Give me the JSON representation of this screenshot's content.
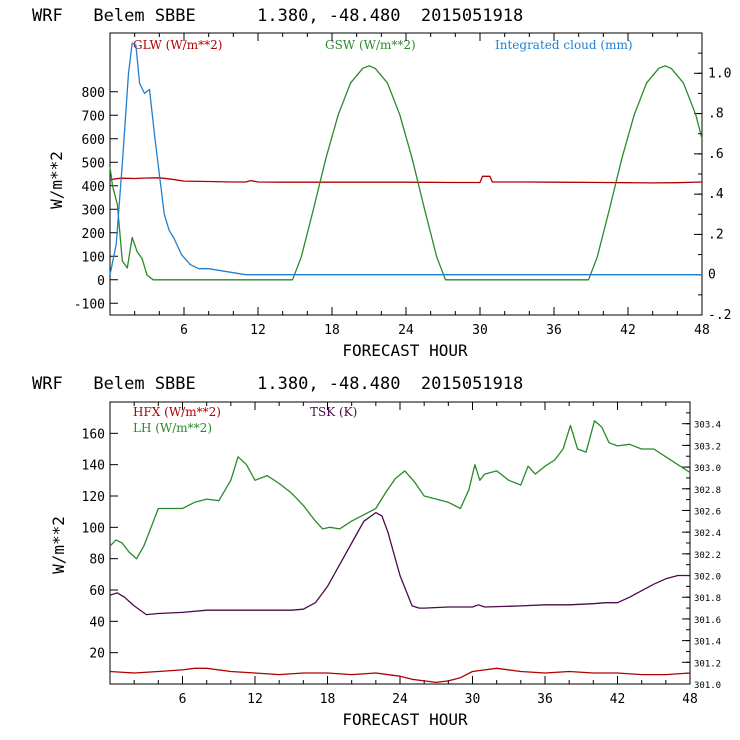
{
  "chart_data": [
    {
      "type": "line",
      "title": "WRF   Belem SBBE      1.380, -48.480  2015051918",
      "xlabel": "FORECAST HOUR",
      "ylabel": "W/m**2",
      "xlim": [
        0,
        48
      ],
      "ylim": [
        -150,
        1050
      ],
      "y2lim": [
        -0.2,
        1.2
      ],
      "x_ticks": [
        "6",
        "12",
        "18",
        "24",
        "30",
        "36",
        "42",
        "48"
      ],
      "y_ticks": [
        "-100",
        "0",
        "100",
        "200",
        "300",
        "400",
        "500",
        "600",
        "700",
        "800"
      ],
      "y2_ticks": [
        "-.2",
        "0",
        ".2",
        ".4",
        ".6",
        ".8",
        "1.0"
      ],
      "series": [
        {
          "name": "GLW (W/m**2)",
          "color": "#b00000",
          "axis": "left",
          "x": [
            0,
            0.5,
            1,
            2,
            3,
            4,
            5,
            6,
            8,
            10,
            11,
            11.4,
            12,
            14,
            18,
            20,
            24,
            28,
            30,
            30.2,
            30.8,
            31,
            34,
            36,
            40,
            42,
            44,
            46,
            48
          ],
          "values": [
            425,
            430,
            432,
            431,
            433,
            434,
            428,
            420,
            418,
            416,
            416,
            422,
            416,
            415,
            415,
            415,
            415,
            414,
            414,
            440,
            440,
            416,
            416,
            415,
            414,
            413,
            412,
            413,
            416
          ]
        },
        {
          "name": "GSW (W/m**2)",
          "color": "#2a8a2a",
          "axis": "left",
          "x": [
            0,
            0.2,
            0.6,
            1.0,
            1.4,
            1.8,
            2.2,
            2.6,
            3.0,
            3.5,
            4,
            6,
            8,
            10,
            12,
            14.8,
            15.5,
            16.5,
            17.5,
            18.5,
            19.5,
            20.5,
            21,
            21.5,
            22.5,
            23.5,
            24.5,
            25.5,
            26.5,
            27.2,
            30,
            35,
            38.8,
            39.5,
            40.5,
            41.5,
            42.5,
            43.5,
            44.5,
            45,
            45.5,
            46.5,
            47.5,
            48
          ],
          "values": [
            480,
            400,
            320,
            80,
            50,
            180,
            120,
            90,
            20,
            0,
            0,
            0,
            0,
            0,
            0,
            0,
            96,
            301,
            515,
            702,
            837,
            900,
            910,
            900,
            837,
            702,
            515,
            301,
            96,
            0,
            0,
            0,
            0,
            96,
            301,
            515,
            702,
            837,
            900,
            910,
            900,
            837,
            702,
            600
          ]
        },
        {
          "name": "Integrated cloud (mm)",
          "color": "#2080d0",
          "axis": "right",
          "x": [
            0,
            0.5,
            1.0,
            1.5,
            1.8,
            2.1,
            2.4,
            2.8,
            3.2,
            3.6,
            4.0,
            4.4,
            4.8,
            5.2,
            5.8,
            6.5,
            7.2,
            8.0,
            9.0,
            10,
            11,
            12,
            24,
            36,
            48
          ],
          "values": [
            0.0,
            0.15,
            0.55,
            1.0,
            1.15,
            1.14,
            0.95,
            0.9,
            0.92,
            0.7,
            0.5,
            0.3,
            0.22,
            0.18,
            0.1,
            0.05,
            0.03,
            0.03,
            0.02,
            0.01,
            0.0,
            0.0,
            0.0,
            0.0,
            0.0
          ]
        }
      ]
    },
    {
      "type": "line",
      "title": "WRF   Belem SBBE      1.380, -48.480  2015051918",
      "xlabel": "FORECAST HOUR",
      "ylabel": "W/m**2",
      "xlim": [
        0,
        48
      ],
      "ylim": [
        0,
        180
      ],
      "y2lim": [
        301.0,
        303.6
      ],
      "x_ticks": [
        "6",
        "12",
        "18",
        "24",
        "30",
        "36",
        "42",
        "48"
      ],
      "y_ticks": [
        "20",
        "40",
        "60",
        "80",
        "100",
        "120",
        "140",
        "160"
      ],
      "y2_ticks": [
        "301.0",
        "301.2",
        "301.4",
        "301.6",
        "301.8",
        "302.0",
        "302.2",
        "302.4",
        "302.6",
        "302.8",
        "303.0",
        "303.2",
        "303.4"
      ],
      "series": [
        {
          "name": "HFX (W/m**2)",
          "color": "#b00000",
          "axis": "left",
          "x": [
            0,
            2,
            4,
            6,
            7,
            8,
            10,
            12,
            14,
            16,
            18,
            20,
            22,
            24,
            25,
            26,
            27,
            28,
            29,
            30,
            31,
            32,
            34,
            36,
            38,
            40,
            42,
            44,
            46,
            48
          ],
          "values": [
            8,
            7,
            8,
            9,
            10,
            10,
            8,
            7,
            6,
            7,
            7,
            6,
            7,
            5,
            3,
            2,
            1,
            2,
            4,
            8,
            9,
            10,
            8,
            7,
            8,
            7,
            7,
            6,
            6,
            7
          ]
        },
        {
          "name": "LH (W/m**2)",
          "color": "#2a8a2a",
          "axis": "left",
          "x": [
            0,
            0.5,
            1.0,
            1.6,
            2.2,
            2.8,
            3.4,
            4,
            5,
            6,
            7,
            8,
            9,
            10,
            10.6,
            11.3,
            12,
            13,
            14,
            15,
            16,
            17,
            17.6,
            18.2,
            19,
            20,
            21,
            22,
            22.8,
            23.6,
            24.4,
            25.2,
            26,
            27,
            28,
            29,
            29.7,
            30.2,
            30.6,
            31,
            32,
            33,
            34,
            34.6,
            35.2,
            36,
            36.8,
            37.5,
            38.1,
            38.7,
            39.4,
            40.1,
            40.7,
            41.3,
            42,
            43,
            44,
            45,
            46,
            47,
            48
          ],
          "values": [
            88,
            92,
            90,
            84,
            80,
            88,
            100,
            112,
            112,
            112,
            116,
            118,
            117,
            130,
            145,
            140,
            130,
            133,
            128,
            122,
            114,
            104,
            99,
            100,
            99,
            104,
            108,
            112,
            122,
            131,
            136,
            129,
            120,
            118,
            116,
            112,
            124,
            140,
            130,
            134,
            136,
            130,
            127,
            139,
            134,
            139,
            143,
            150,
            165,
            150,
            148,
            168,
            164,
            154,
            152,
            153,
            150,
            150,
            145,
            140,
            135
          ]
        },
        {
          "name": "TSK (K)",
          "color": "#4b0a4b",
          "axis": "right",
          "x": [
            0,
            0.6,
            1.2,
            2,
            3,
            4,
            6,
            8,
            10,
            12,
            14,
            15,
            16,
            17,
            18,
            19,
            20,
            21,
            22,
            22.5,
            23,
            24,
            25,
            25.6,
            26,
            28,
            30,
            30.5,
            31,
            34,
            36,
            38,
            40,
            41,
            42,
            43,
            44,
            45,
            46,
            47,
            48
          ],
          "values": [
            301.82,
            301.84,
            301.8,
            301.72,
            301.64,
            301.65,
            301.66,
            301.68,
            301.68,
            301.68,
            301.68,
            301.68,
            301.69,
            301.75,
            301.9,
            302.1,
            302.3,
            302.5,
            302.58,
            302.55,
            302.4,
            302.0,
            301.72,
            301.7,
            301.7,
            301.71,
            301.71,
            301.73,
            301.71,
            301.72,
            301.73,
            301.73,
            301.74,
            301.75,
            301.75,
            301.8,
            301.86,
            301.92,
            301.97,
            302.0,
            302.0
          ]
        }
      ]
    }
  ]
}
